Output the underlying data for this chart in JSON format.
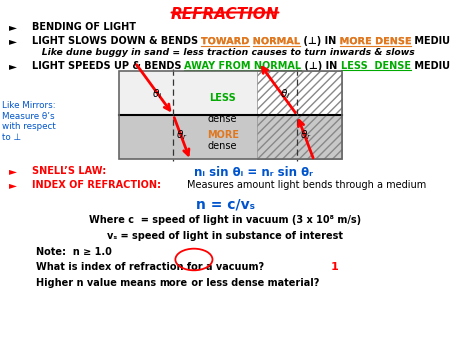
{
  "title": "REFRACTION",
  "bg_color": "#ffffff",
  "title_color": "#ff0000",
  "bullet1": "BENDING OF LIGHT",
  "bullet2_italic": "   Like dune buggy in sand = less traction causes to turn inwards & slows",
  "less_dense_label": "LESS\ndense",
  "more_dense_label": "MORE\ndense",
  "like_mirrors_text": "Like Mirrors:\nMeasure θ’s\nwith respect\nto ⊥",
  "snells_law_label": "SNELL’S LAW:",
  "snells_law_eq": "nᵢ sin θᵢ = nᵣ sin θᵣ",
  "index_label": "INDEX OF REFRACTION:",
  "index_desc": "Measures amount light bends through a medium",
  "n_eq": "n = c/vₛ",
  "where_c": "Where c  = speed of light in vacuum (3 x 10⁸ m/s)",
  "vs_desc": "vₛ = speed of light in substance of interest",
  "note": "Note:  n ≥ 1.0",
  "question1": "What is index of refraction for a vacuum?",
  "answer1": "1",
  "question2": "Higher n value means ",
  "circled_word": "more",
  "question2b": " or less dense material?",
  "orange_color": "#e07820",
  "green_color": "#00aa00",
  "red_color": "#ff0000",
  "blue_color": "#0055cc",
  "black_color": "#000000"
}
